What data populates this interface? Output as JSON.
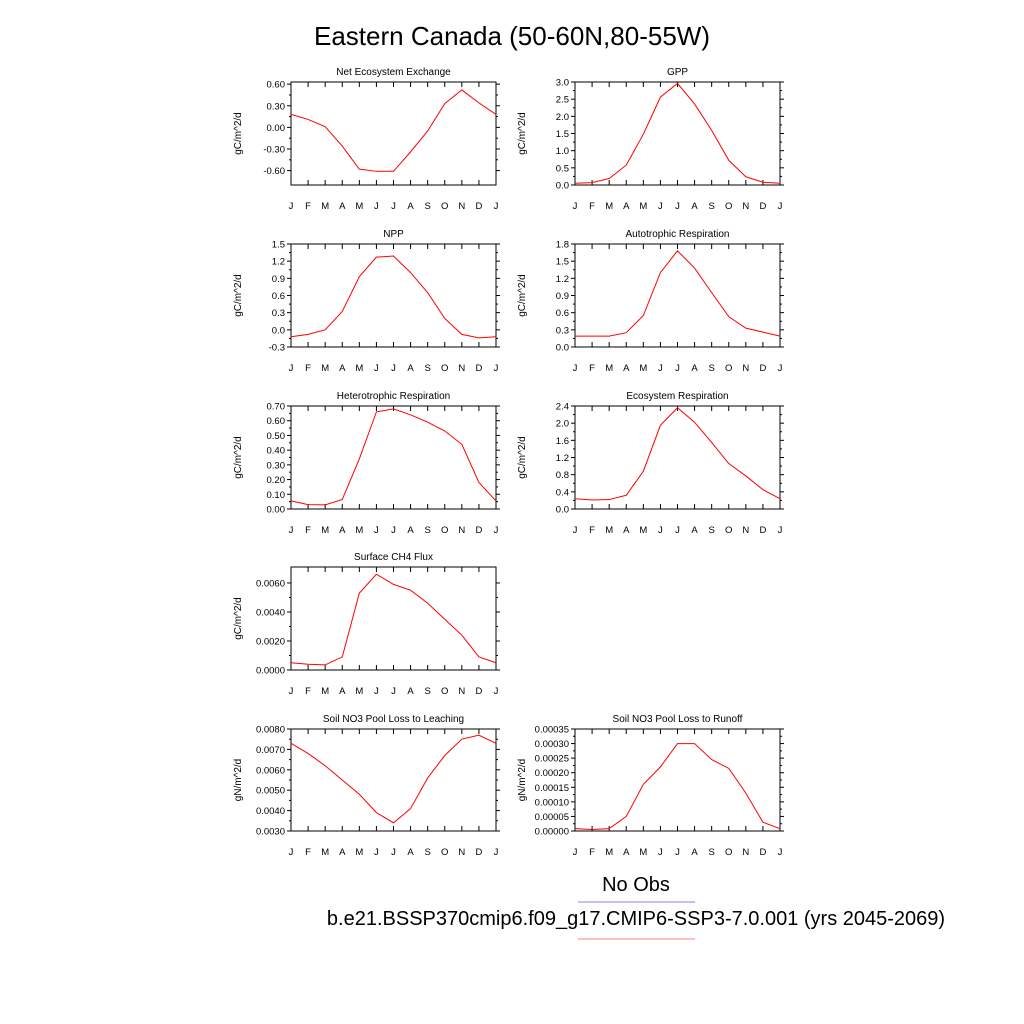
{
  "title": "Eastern Canada (50-60N,80-55W)",
  "legend": {
    "obs_label": "No Obs",
    "model_label": "b.e21.BSSP370cmip6.f09_g17.CMIP6-SSP3-7.0.001 (yrs 2045-2069)",
    "obs_color": "#8080ff",
    "model_color": "#ff8080"
  },
  "colors": {
    "line": "#ff0000",
    "axis": "#000000"
  },
  "chart_data": [
    {
      "type": "line",
      "title": "Net Ecosystem Exchange",
      "ylabel": "gC/m^2/d",
      "categories": [
        "J",
        "F",
        "M",
        "A",
        "M",
        "J",
        "J",
        "A",
        "S",
        "O",
        "N",
        "D",
        "J"
      ],
      "ylim": [
        -0.8,
        0.63
      ],
      "yticks": [
        "0.60",
        "0.30",
        "0.00",
        "-0.30",
        "-0.60"
      ],
      "ytick_values": [
        0.6,
        0.3,
        0.0,
        -0.3,
        -0.6
      ],
      "series": [
        {
          "values": [
            0.18,
            0.11,
            0.01,
            -0.26,
            -0.58,
            -0.61,
            -0.61,
            -0.34,
            -0.05,
            0.33,
            0.52,
            0.34,
            0.18
          ]
        }
      ]
    },
    {
      "type": "line",
      "title": "GPP",
      "ylabel": "gC/m^2/d",
      "categories": [
        "J",
        "F",
        "M",
        "A",
        "M",
        "J",
        "J",
        "A",
        "S",
        "O",
        "N",
        "D",
        "J"
      ],
      "ylim": [
        0.0,
        3.0
      ],
      "yticks": [
        "3.0",
        "2.5",
        "2.0",
        "1.5",
        "1.0",
        "0.5",
        "0.0"
      ],
      "ytick_values": [
        3.0,
        2.5,
        2.0,
        1.5,
        1.0,
        0.5,
        0.0
      ],
      "series": [
        {
          "values": [
            0.05,
            0.07,
            0.19,
            0.58,
            1.48,
            2.56,
            2.96,
            2.36,
            1.59,
            0.72,
            0.24,
            0.08,
            0.05
          ]
        }
      ]
    },
    {
      "type": "line",
      "title": "NPP",
      "ylabel": "gC/m^2/d",
      "categories": [
        "J",
        "F",
        "M",
        "A",
        "M",
        "J",
        "J",
        "A",
        "S",
        "O",
        "N",
        "D",
        "J"
      ],
      "ylim": [
        -0.3,
        1.5
      ],
      "yticks": [
        "1.5",
        "1.2",
        "0.9",
        "0.6",
        "0.3",
        "0.0",
        "-0.3"
      ],
      "ytick_values": [
        1.5,
        1.2,
        0.9,
        0.6,
        0.3,
        0.0,
        -0.3
      ],
      "series": [
        {
          "values": [
            -0.12,
            -0.08,
            0.0,
            0.32,
            0.93,
            1.27,
            1.29,
            1.0,
            0.65,
            0.2,
            -0.08,
            -0.14,
            -0.12
          ]
        }
      ]
    },
    {
      "type": "line",
      "title": "Autotrophic Respiration",
      "ylabel": "gC/m^2/d",
      "categories": [
        "J",
        "F",
        "M",
        "A",
        "M",
        "J",
        "J",
        "A",
        "S",
        "O",
        "N",
        "D",
        "J"
      ],
      "ylim": [
        0.0,
        1.8
      ],
      "yticks": [
        "1.8",
        "1.5",
        "1.2",
        "0.9",
        "0.6",
        "0.3",
        "0.0"
      ],
      "ytick_values": [
        1.8,
        1.5,
        1.2,
        0.9,
        0.6,
        0.3,
        0.0
      ],
      "series": [
        {
          "values": [
            0.19,
            0.19,
            0.19,
            0.25,
            0.55,
            1.3,
            1.68,
            1.38,
            0.95,
            0.53,
            0.33,
            0.26,
            0.19
          ]
        }
      ]
    },
    {
      "type": "line",
      "title": "Heterotrophic Respiration",
      "ylabel": "gC/m^2/d",
      "categories": [
        "J",
        "F",
        "M",
        "A",
        "M",
        "J",
        "J",
        "A",
        "S",
        "O",
        "N",
        "D",
        "J"
      ],
      "ylim": [
        0.0,
        0.7
      ],
      "yticks": [
        "0.70",
        "0.60",
        "0.50",
        "0.40",
        "0.30",
        "0.20",
        "0.10",
        "0.00"
      ],
      "ytick_values": [
        0.7,
        0.6,
        0.5,
        0.4,
        0.3,
        0.2,
        0.1,
        0.0
      ],
      "series": [
        {
          "values": [
            0.055,
            0.03,
            0.028,
            0.065,
            0.34,
            0.66,
            0.68,
            0.64,
            0.59,
            0.53,
            0.44,
            0.18,
            0.055
          ]
        }
      ]
    },
    {
      "type": "line",
      "title": "Ecosystem Respiration",
      "ylabel": "gC/m^2/d",
      "categories": [
        "J",
        "F",
        "M",
        "A",
        "M",
        "J",
        "J",
        "A",
        "S",
        "O",
        "N",
        "D",
        "J"
      ],
      "ylim": [
        0.0,
        2.4
      ],
      "yticks": [
        "2.4",
        "2.0",
        "1.6",
        "1.2",
        "0.8",
        "0.4",
        "0.0"
      ],
      "ytick_values": [
        2.4,
        2.0,
        1.6,
        1.2,
        0.8,
        0.4,
        0.0
      ],
      "series": [
        {
          "values": [
            0.24,
            0.21,
            0.22,
            0.32,
            0.88,
            1.95,
            2.36,
            2.02,
            1.55,
            1.06,
            0.77,
            0.45,
            0.24
          ]
        }
      ]
    },
    {
      "type": "line",
      "title": "Surface CH4 Flux",
      "ylabel": "gC/m^2/d",
      "categories": [
        "J",
        "F",
        "M",
        "A",
        "M",
        "J",
        "J",
        "A",
        "S",
        "O",
        "N",
        "D",
        "J"
      ],
      "ylim": [
        0.0,
        0.0071
      ],
      "yticks": [
        "0.0060",
        "0.0040",
        "0.0020",
        "0.0000"
      ],
      "ytick_values": [
        0.006,
        0.004,
        0.002,
        0.0
      ],
      "series": [
        {
          "values": [
            0.0005,
            0.0004,
            0.00035,
            0.0009,
            0.0053,
            0.0066,
            0.0059,
            0.0055,
            0.0046,
            0.0035,
            0.0024,
            0.0009,
            0.0005
          ]
        }
      ]
    },
    {
      "type": "line",
      "title": "Soil NO3 Pool Loss to Leaching",
      "ylabel": "gN/m^2/d",
      "categories": [
        "J",
        "F",
        "M",
        "A",
        "M",
        "J",
        "J",
        "A",
        "S",
        "O",
        "N",
        "D",
        "J"
      ],
      "ylim": [
        0.003,
        0.008
      ],
      "yticks": [
        "0.0080",
        "0.0070",
        "0.0060",
        "0.0050",
        "0.0040",
        "0.0030"
      ],
      "ytick_values": [
        0.008,
        0.007,
        0.006,
        0.005,
        0.004,
        0.003
      ],
      "series": [
        {
          "values": [
            0.0073,
            0.0068,
            0.0062,
            0.0055,
            0.0048,
            0.0039,
            0.0034,
            0.0041,
            0.0056,
            0.0067,
            0.0075,
            0.0077,
            0.0073
          ]
        }
      ]
    },
    {
      "type": "line",
      "title": "Soil NO3 Pool Loss to Runoff",
      "ylabel": "gN/m^2/d",
      "categories": [
        "J",
        "F",
        "M",
        "A",
        "M",
        "J",
        "J",
        "A",
        "S",
        "O",
        "N",
        "D",
        "J"
      ],
      "ylim": [
        0.0,
        0.00035
      ],
      "yticks": [
        "0.00035",
        "0.00030",
        "0.00025",
        "0.00020",
        "0.00015",
        "0.00010",
        "0.00005",
        "0.00000"
      ],
      "ytick_values": [
        0.00035,
        0.0003,
        0.00025,
        0.0002,
        0.00015,
        0.0001,
        5e-05,
        0.0
      ],
      "series": [
        {
          "values": [
            8e-06,
            5e-06,
            8e-06,
            5e-05,
            0.00016,
            0.00022,
            0.0003,
            0.0003,
            0.000245,
            0.000215,
            0.00013,
            3e-05,
            8e-06
          ]
        }
      ]
    }
  ]
}
